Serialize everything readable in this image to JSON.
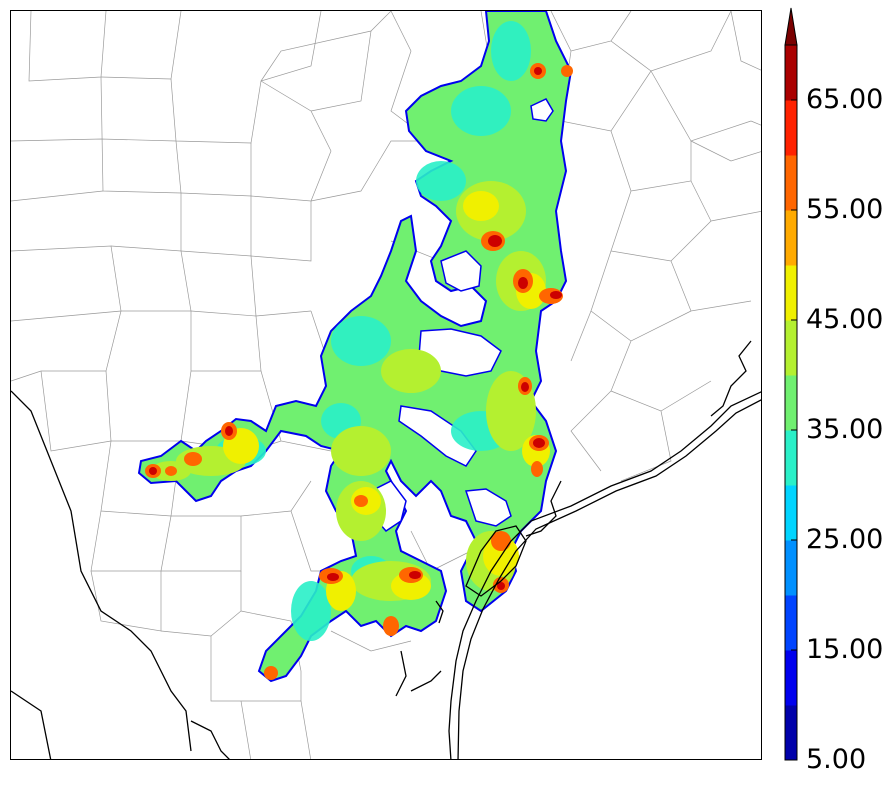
{
  "colorbar": {
    "tick_labels": [
      "5.00",
      "15.00",
      "25.00",
      "35.00",
      "45.00",
      "55.00",
      "65.00"
    ],
    "colors": [
      "#0000aa",
      "#0000ee",
      "#0044ff",
      "#0090ff",
      "#00d4ff",
      "#2af0c8",
      "#70f070",
      "#b4f030",
      "#f0f000",
      "#ffaa00",
      "#ff6600",
      "#ff2200",
      "#aa0000",
      "#7a0000"
    ],
    "extend": "max"
  },
  "map": {
    "background": "#ffffff",
    "county_line_color": "#999999",
    "coast_line_color": "#000000"
  }
}
